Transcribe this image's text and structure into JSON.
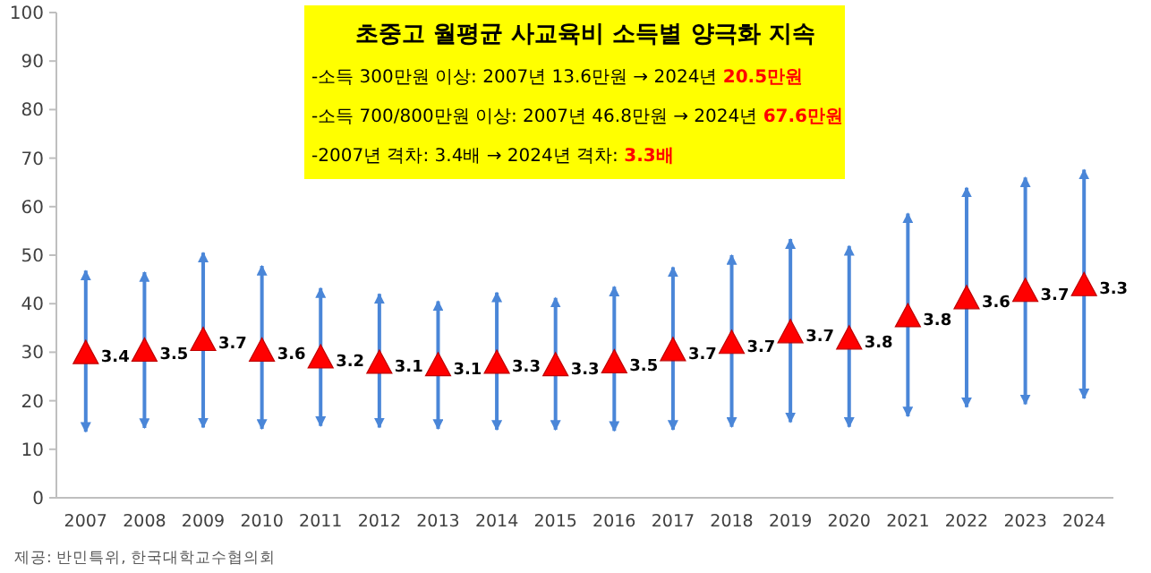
{
  "chart_data": {
    "type": "scatter",
    "title": "초중고 월평균 사교육비  소득별 양극화 지속",
    "annotations": [
      "-소득 300만원 이상: 2007년 13.6만원 → 2024년 **20.5만원**",
      "-소득 700/800만원 이상: 2007년 46.8만원 → 2024년 **67.6만원**",
      "-2007년 격차: 3.4배 → 2024년 격차: **3.3배**",
      "제공: 반민특위, 한국대학교수협의회",
      {
        "text": "3.4",
        "x": "2007",
        "y": 29.5
      },
      {
        "text": "3.5",
        "x": "2008",
        "y": 30
      },
      {
        "text": "3.7",
        "x": "2009",
        "y": 32.2
      },
      {
        "text": "3.6",
        "x": "2010",
        "y": 30
      },
      {
        "text": "3.2",
        "x": "2011",
        "y": 28.6
      },
      {
        "text": "3.1",
        "x": "2012",
        "y": 27.5
      },
      {
        "text": "3.1",
        "x": "2013",
        "y": 27
      },
      {
        "text": "3.3",
        "x": "2014",
        "y": 27.5
      },
      {
        "text": "3.3",
        "x": "2015",
        "y": 27
      },
      {
        "text": "3.5",
        "x": "2016",
        "y": 27.6
      },
      {
        "text": "3.7",
        "x": "2017",
        "y": 30.1
      },
      {
        "text": "3.7",
        "x": "2018",
        "y": 31.6
      },
      {
        "text": "3.7",
        "x": "2019",
        "y": 33.8
      },
      {
        "text": "3.8",
        "x": "2020",
        "y": 32.5
      },
      {
        "text": "3.8",
        "x": "2021",
        "y": 37.1
      },
      {
        "text": "3.6",
        "x": "2022",
        "y": 40.8
      },
      {
        "text": "3.7",
        "x": "2023",
        "y": 42.3
      },
      {
        "text": "3.3",
        "x": "2024",
        "y": 43.5
      }
    ],
    "categories": [
      "2007",
      "2008",
      "2009",
      "2010",
      "2011",
      "2012",
      "2013",
      "2014",
      "2015",
      "2016",
      "2017",
      "2018",
      "2019",
      "2020",
      "2021",
      "2022",
      "2023",
      "2024"
    ],
    "series": [
      {
        "color": "#ff0000",
        "values": [
          29.5,
          30,
          32.2,
          30,
          28.6,
          27.5,
          27,
          27.5,
          27,
          27.6,
          30.1,
          31.6,
          33.8,
          32.5,
          37.1,
          40.8,
          42.3,
          43.5
        ],
        "errors": [
          [
            13.6,
            46.8
          ],
          [
            14.4,
            46.5
          ],
          [
            14.5,
            50.5
          ],
          [
            14.2,
            47.8
          ],
          [
            14.8,
            43.2
          ],
          [
            14.5,
            42
          ],
          [
            14.2,
            40.5
          ],
          [
            14,
            42.3
          ],
          [
            14,
            41.2
          ],
          [
            13.8,
            43.5
          ],
          [
            14,
            47.5
          ],
          [
            14.6,
            50
          ],
          [
            15.6,
            53.3
          ],
          [
            14.6,
            51.9
          ],
          [
            16.8,
            58.6
          ],
          [
            18.7,
            63.9
          ],
          [
            19.3,
            66
          ],
          [
            20.5,
            67.6
          ]
        ]
      }
    ],
    "ylim": [
      0,
      100
    ],
    "yticks": [
      0,
      10,
      20,
      30,
      40,
      50,
      60,
      70,
      80,
      90,
      100
    ],
    "marker": "triangle",
    "grid": false
  }
}
